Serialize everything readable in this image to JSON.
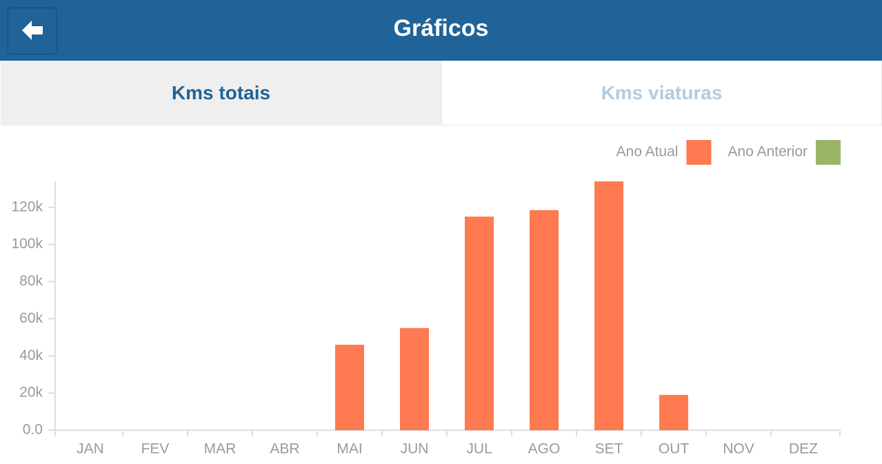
{
  "header": {
    "title": "Gráficos"
  },
  "tabs": [
    "Kms totais",
    "Kms viaturas"
  ],
  "chart_data": {
    "type": "bar",
    "categories": [
      "JAN",
      "FEV",
      "MAR",
      "ABR",
      "MAI",
      "JUN",
      "JUL",
      "AGO",
      "SET",
      "OUT",
      "NOV",
      "DEZ"
    ],
    "series": [
      {
        "name": "Ano Atual",
        "color": "#ff7a50",
        "values": [
          0,
          0,
          0,
          0,
          46000,
          55000,
          115000,
          118500,
          134000,
          19000,
          0,
          0
        ]
      },
      {
        "name": "Ano Anterior",
        "color": "#9bb567",
        "values": [
          null,
          null,
          null,
          null,
          null,
          null,
          null,
          null,
          null,
          null,
          null,
          null
        ]
      }
    ],
    "ylim": [
      0,
      134000
    ],
    "yticks": [
      {
        "value": 0,
        "label": "0.0"
      },
      {
        "value": 20000,
        "label": "20k"
      },
      {
        "value": 40000,
        "label": "40k"
      },
      {
        "value": 60000,
        "label": "60k"
      },
      {
        "value": 80000,
        "label": "80k"
      },
      {
        "value": 100000,
        "label": "100k"
      },
      {
        "value": 120000,
        "label": "120k"
      }
    ],
    "legend": "top-right"
  }
}
